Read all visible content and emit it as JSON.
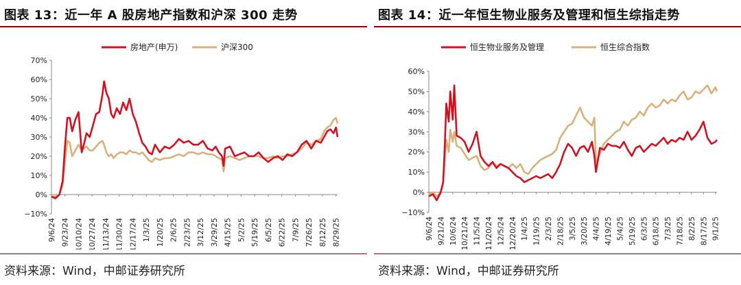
{
  "panels": [
    {
      "title": "图表 13：近一年 A 股房地产指数和沪深 300 走势",
      "source": "资料来源：Wind，中邮证券研究所",
      "chart_data": {
        "type": "line",
        "xlabel": "",
        "ylabel": "",
        "ylim": [
          -10,
          70
        ],
        "yticks": [
          -10,
          0,
          10,
          20,
          30,
          40,
          50,
          60,
          70
        ],
        "ytick_labels": [
          "−10%",
          "0%",
          "10%",
          "20%",
          "30%",
          "40%",
          "50%",
          "60%",
          "70%"
        ],
        "xlim": [
          0,
          359
        ],
        "xticks": [
          0,
          17,
          34,
          51,
          68,
          85,
          102,
          119,
          136,
          153,
          170,
          187,
          204,
          221,
          238,
          255,
          272,
          289,
          306,
          323,
          340,
          357
        ],
        "xtick_labels": [
          "9/6/24",
          "9/23/24",
          "10/10/24",
          "10/27/24",
          "11/13/24",
          "11/30/24",
          "12/17/24",
          "1/3/25",
          "1/20/25",
          "2/6/25",
          "2/23/25",
          "3/12/25",
          "3/29/25",
          "4/15/25",
          "5/2/25",
          "5/19/25",
          "6/5/25",
          "6/22/25",
          "7/9/25",
          "7/26/25",
          "8/12/25",
          "8/29/25"
        ],
        "legend_position": "top",
        "colors": [
          "#d40f1f",
          "#d9b07a"
        ],
        "series": [
          {
            "name": "房地产(申万)",
            "x": [
              0,
              5,
              10,
              14,
              17,
              20,
              23,
              26,
              30,
              34,
              38,
              40,
              44,
              48,
              52,
              56,
              60,
              64,
              66,
              69,
              72,
              75,
              78,
              82,
              86,
              90,
              94,
              98,
              102,
              106,
              110,
              114,
              118,
              122,
              126,
              130,
              136,
              142,
              148,
              154,
              160,
              166,
              172,
              178,
              184,
              190,
              196,
              202,
              206,
              210,
              214,
              216,
              218,
              224,
              230,
              236,
              242,
              248,
              254,
              260,
              266,
              272,
              278,
              284,
              290,
              296,
              302,
              308,
              314,
              320,
              326,
              332,
              338,
              342,
              346,
              350,
              354,
              357,
              359
            ],
            "y": [
              -1,
              -2,
              0,
              7,
              25,
              40,
              40,
              33,
              39,
              43,
              22,
              25,
              32,
              30,
              36,
              42,
              43,
              52,
              59,
              53,
              50,
              42,
              40,
              45,
              42,
              48,
              44,
              50,
              42,
              38,
              32,
              27,
              25,
              22,
              21,
              26,
              22,
              25,
              24,
              26,
              29,
              27,
              28,
              26,
              26,
              28,
              24,
              23,
              25,
              22,
              20,
              15,
              24,
              25,
              20,
              21,
              22,
              20,
              20,
              22,
              19,
              17,
              19,
              20,
              18,
              21,
              20,
              22,
              26,
              28,
              24,
              28,
              27,
              30,
              33,
              34,
              32,
              35,
              30
            ]
          },
          {
            "name": "沪深300",
            "x": [
              0,
              5,
              10,
              14,
              17,
              20,
              23,
              26,
              30,
              34,
              38,
              40,
              44,
              48,
              52,
              56,
              60,
              64,
              66,
              69,
              72,
              75,
              78,
              82,
              86,
              90,
              94,
              98,
              102,
              106,
              110,
              114,
              118,
              122,
              126,
              130,
              136,
              142,
              148,
              154,
              160,
              166,
              172,
              178,
              184,
              190,
              196,
              202,
              206,
              210,
              214,
              216,
              218,
              224,
              230,
              236,
              242,
              248,
              254,
              260,
              266,
              272,
              278,
              284,
              290,
              296,
              302,
              308,
              314,
              320,
              326,
              332,
              338,
              342,
              346,
              350,
              354,
              357,
              359
            ],
            "y": [
              -1,
              -1,
              0,
              5,
              17,
              28,
              27,
              20,
              23,
              26,
              23,
              24,
              25,
              23,
              23,
              25,
              27,
              28,
              26,
              22,
              20,
              21,
              19,
              21,
              22,
              22,
              21,
              23,
              22,
              22,
              21,
              22,
              20,
              18,
              17,
              19,
              18,
              19,
              19,
              20,
              21,
              20,
              22,
              22,
              21,
              22,
              21,
              21,
              20,
              19,
              18,
              12,
              19,
              20,
              19,
              18,
              19,
              20,
              20,
              20,
              19,
              19,
              20,
              19,
              20,
              20,
              21,
              22,
              24,
              27,
              26,
              28,
              29,
              33,
              35,
              36,
              39,
              40,
              37
            ]
          }
        ]
      }
    },
    {
      "title": "图表 14：近一年恒生物业服务及管理和恒生综指走势",
      "source": "资料来源：Wind，中邮证券研究所",
      "chart_data": {
        "type": "line",
        "xlabel": "",
        "ylabel": "",
        "ylim": [
          -10,
          60
        ],
        "yticks": [
          -10,
          0,
          10,
          20,
          30,
          40,
          50,
          60
        ],
        "ytick_labels": [
          "−10%",
          "0%",
          "10%",
          "20%",
          "30%",
          "40%",
          "50%",
          "60%"
        ],
        "xlim": [
          0,
          362
        ],
        "xticks": [
          0,
          15,
          30,
          45,
          60,
          75,
          90,
          105,
          120,
          135,
          150,
          165,
          180,
          195,
          210,
          225,
          240,
          255,
          270,
          285,
          300,
          315,
          330,
          345,
          360
        ],
        "xtick_labels": [
          "9/6/24",
          "9/21/24",
          "10/6/24",
          "10/21/24",
          "11/5/24",
          "11/20/24",
          "12/5/24",
          "12/20/24",
          "1/4/25",
          "1/19/25",
          "2/3/25",
          "2/18/25",
          "3/5/25",
          "3/20/25",
          "4/4/25",
          "4/19/25",
          "5/4/25",
          "5/19/25",
          "6/3/25",
          "6/18/25",
          "7/3/25",
          "7/18/25",
          "8/2/25",
          "8/17/25",
          "9/1/25"
        ],
        "legend_position": "top",
        "colors": [
          "#d40f1f",
          "#d9b07a"
        ],
        "series": [
          {
            "name": "恒生物业服务及管理",
            "x": [
              0,
              5,
              10,
              15,
              18,
              20,
              22,
              25,
              27,
              30,
              32,
              35,
              40,
              45,
              50,
              55,
              60,
              65,
              70,
              75,
              80,
              85,
              90,
              95,
              100,
              105,
              110,
              115,
              120,
              125,
              130,
              135,
              140,
              145,
              150,
              155,
              160,
              165,
              170,
              175,
              180,
              185,
              190,
              195,
              200,
              205,
              208,
              210,
              215,
              220,
              225,
              230,
              235,
              240,
              245,
              250,
              255,
              260,
              265,
              270,
              275,
              280,
              285,
              290,
              295,
              300,
              305,
              310,
              315,
              320,
              325,
              330,
              335,
              340,
              345,
              350,
              355,
              360,
              362
            ],
            "y": [
              -2,
              -1,
              -4,
              0,
              5,
              22,
              44,
              35,
              50,
              36,
              53,
              28,
              27,
              25,
              20,
              24,
              30,
              18,
              15,
              13,
              15,
              12,
              14,
              13,
              12,
              10,
              8,
              7,
              5,
              6,
              7,
              8,
              7,
              8,
              9,
              7,
              10,
              14,
              20,
              24,
              22,
              18,
              22,
              23,
              20,
              25,
              18,
              10,
              22,
              21,
              24,
              23,
              23,
              22,
              25,
              21,
              18,
              22,
              23,
              20,
              22,
              24,
              23,
              25,
              27,
              24,
              26,
              25,
              27,
              26,
              30,
              26,
              28,
              31,
              35,
              27,
              24,
              25,
              26
            ]
          },
          {
            "name": "恒生综合指数",
            "x": [
              0,
              5,
              10,
              15,
              18,
              20,
              22,
              25,
              27,
              30,
              32,
              35,
              40,
              45,
              50,
              55,
              60,
              65,
              70,
              75,
              80,
              85,
              90,
              95,
              100,
              105,
              110,
              115,
              120,
              125,
              130,
              135,
              140,
              145,
              150,
              155,
              160,
              165,
              170,
              175,
              180,
              185,
              190,
              195,
              200,
              205,
              208,
              210,
              215,
              220,
              225,
              230,
              235,
              240,
              245,
              250,
              255,
              260,
              265,
              270,
              275,
              280,
              285,
              290,
              295,
              300,
              305,
              310,
              315,
              320,
              325,
              330,
              335,
              340,
              345,
              350,
              355,
              360,
              362
            ],
            "y": [
              -1,
              0,
              -2,
              0,
              5,
              16,
              26,
              20,
              31,
              25,
              30,
              23,
              22,
              19,
              16,
              17,
              18,
              13,
              11,
              12,
              15,
              13,
              14,
              13,
              12,
              14,
              12,
              14,
              10,
              9,
              12,
              14,
              16,
              17,
              18,
              19,
              21,
              27,
              30,
              33,
              34,
              38,
              42,
              37,
              35,
              33,
              37,
              15,
              19,
              24,
              26,
              28,
              30,
              31,
              35,
              33,
              36,
              37,
              40,
              38,
              42,
              44,
              42,
              43,
              46,
              44,
              46,
              45,
              48,
              50,
              46,
              47,
              50,
              49,
              51,
              53,
              49,
              52,
              50
            ]
          }
        ]
      }
    }
  ]
}
